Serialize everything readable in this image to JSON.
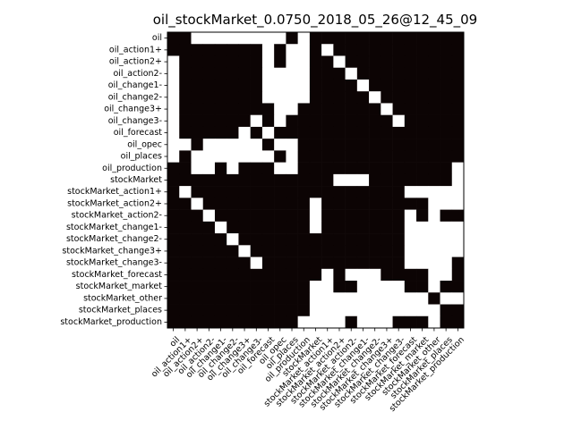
{
  "chart_data": {
    "type": "heatmap",
    "title": "oil_stockMarket_0.0750_2018_05_26@12_45_09",
    "xlabel": "",
    "ylabel": "",
    "grid": false,
    "colormap": {
      "one": "#ffffff",
      "zero": "#0c0404"
    },
    "labels": [
      "oil",
      "oil_action1+",
      "oil_action2+",
      "oil_action2-",
      "oil_change1-",
      "oil_change2-",
      "oil_change3+",
      "oil_change3-",
      "oil_forecast",
      "oil_opec",
      "oil_places",
      "oil_production",
      "stockMarket",
      "stockMarket_action1+",
      "stockMarket_action2+",
      "stockMarket_action2-",
      "stockMarket_change1-",
      "stockMarket_change2-",
      "stockMarket_change3+",
      "stockMarket_change3-",
      "stockMarket_forecast",
      "stockMarket_market",
      "stockMarket_other",
      "stockMarket_places",
      "stockMarket_production"
    ],
    "matrix": [
      [
        0,
        0,
        1,
        1,
        1,
        1,
        1,
        1,
        1,
        1,
        0,
        1,
        0,
        0,
        0,
        0,
        0,
        0,
        0,
        0,
        0,
        0,
        0,
        0,
        0
      ],
      [
        0,
        0,
        0,
        0,
        0,
        0,
        0,
        0,
        1,
        0,
        1,
        1,
        0,
        1,
        0,
        0,
        0,
        0,
        0,
        0,
        0,
        0,
        0,
        0,
        0
      ],
      [
        1,
        0,
        0,
        0,
        0,
        0,
        0,
        0,
        1,
        0,
        1,
        1,
        0,
        0,
        1,
        0,
        0,
        0,
        0,
        0,
        0,
        0,
        0,
        0,
        0
      ],
      [
        1,
        0,
        0,
        0,
        0,
        0,
        0,
        0,
        1,
        1,
        1,
        1,
        0,
        0,
        0,
        1,
        0,
        0,
        0,
        0,
        0,
        0,
        0,
        0,
        0
      ],
      [
        1,
        0,
        0,
        0,
        0,
        0,
        0,
        0,
        1,
        1,
        1,
        1,
        0,
        0,
        0,
        0,
        1,
        0,
        0,
        0,
        0,
        0,
        0,
        0,
        0
      ],
      [
        1,
        0,
        0,
        0,
        0,
        0,
        0,
        0,
        1,
        1,
        1,
        1,
        0,
        0,
        0,
        0,
        0,
        1,
        0,
        0,
        0,
        0,
        0,
        0,
        0
      ],
      [
        1,
        0,
        0,
        0,
        0,
        0,
        0,
        0,
        0,
        1,
        1,
        0,
        0,
        0,
        0,
        0,
        0,
        0,
        1,
        0,
        0,
        0,
        0,
        0,
        0
      ],
      [
        1,
        0,
        0,
        0,
        0,
        0,
        0,
        1,
        0,
        1,
        0,
        0,
        0,
        0,
        0,
        0,
        0,
        0,
        0,
        1,
        0,
        0,
        0,
        0,
        0
      ],
      [
        1,
        0,
        0,
        0,
        0,
        0,
        1,
        0,
        1,
        0,
        0,
        0,
        0,
        0,
        0,
        0,
        0,
        0,
        0,
        0,
        0,
        0,
        0,
        0,
        0
      ],
      [
        1,
        1,
        0,
        1,
        1,
        1,
        1,
        1,
        0,
        1,
        1,
        0,
        0,
        0,
        0,
        0,
        0,
        0,
        0,
        0,
        0,
        0,
        0,
        0,
        0
      ],
      [
        1,
        0,
        1,
        1,
        1,
        1,
        1,
        1,
        1,
        0,
        1,
        0,
        0,
        0,
        0,
        0,
        0,
        0,
        0,
        0,
        0,
        0,
        0,
        0,
        0
      ],
      [
        0,
        0,
        1,
        1,
        0,
        1,
        0,
        0,
        0,
        1,
        1,
        0,
        0,
        0,
        0,
        0,
        0,
        0,
        0,
        0,
        0,
        0,
        0,
        0,
        1
      ],
      [
        0,
        0,
        0,
        0,
        0,
        0,
        0,
        0,
        0,
        0,
        0,
        0,
        0,
        0,
        1,
        1,
        1,
        0,
        0,
        0,
        0,
        0,
        0,
        0,
        1
      ],
      [
        0,
        1,
        0,
        0,
        0,
        0,
        0,
        0,
        0,
        0,
        0,
        0,
        0,
        0,
        0,
        0,
        0,
        0,
        0,
        0,
        1,
        1,
        1,
        1,
        1
      ],
      [
        0,
        0,
        1,
        0,
        0,
        0,
        0,
        0,
        0,
        0,
        0,
        0,
        1,
        0,
        0,
        0,
        0,
        0,
        0,
        0,
        0,
        0,
        1,
        1,
        1
      ],
      [
        0,
        0,
        0,
        1,
        0,
        0,
        0,
        0,
        0,
        0,
        0,
        0,
        1,
        0,
        0,
        0,
        0,
        0,
        0,
        0,
        1,
        0,
        1,
        0,
        0
      ],
      [
        0,
        0,
        0,
        0,
        1,
        0,
        0,
        0,
        0,
        0,
        0,
        0,
        1,
        0,
        0,
        0,
        0,
        0,
        0,
        0,
        1,
        1,
        1,
        1,
        1
      ],
      [
        0,
        0,
        0,
        0,
        0,
        1,
        0,
        0,
        0,
        0,
        0,
        0,
        0,
        0,
        0,
        0,
        0,
        0,
        0,
        0,
        1,
        1,
        1,
        1,
        1
      ],
      [
        0,
        0,
        0,
        0,
        0,
        0,
        1,
        0,
        0,
        0,
        0,
        0,
        0,
        0,
        0,
        0,
        0,
        0,
        0,
        0,
        1,
        1,
        1,
        1,
        1
      ],
      [
        0,
        0,
        0,
        0,
        0,
        0,
        0,
        1,
        0,
        0,
        0,
        0,
        0,
        0,
        0,
        0,
        0,
        0,
        0,
        0,
        1,
        1,
        1,
        1,
        0
      ],
      [
        0,
        0,
        0,
        0,
        0,
        0,
        0,
        0,
        0,
        0,
        0,
        0,
        0,
        1,
        0,
        1,
        1,
        1,
        0,
        0,
        0,
        0,
        1,
        1,
        0
      ],
      [
        0,
        0,
        0,
        0,
        0,
        0,
        0,
        0,
        0,
        0,
        0,
        0,
        1,
        1,
        0,
        0,
        1,
        1,
        1,
        1,
        0,
        0,
        1,
        0,
        0
      ],
      [
        0,
        0,
        0,
        0,
        0,
        0,
        0,
        0,
        0,
        0,
        0,
        0,
        1,
        1,
        1,
        1,
        1,
        1,
        1,
        1,
        1,
        1,
        0,
        1,
        1
      ],
      [
        0,
        0,
        0,
        0,
        0,
        0,
        0,
        0,
        0,
        0,
        0,
        0,
        1,
        1,
        1,
        1,
        1,
        1,
        1,
        1,
        1,
        1,
        1,
        0,
        0
      ],
      [
        0,
        0,
        0,
        0,
        0,
        0,
        0,
        0,
        0,
        0,
        0,
        1,
        1,
        1,
        1,
        0,
        1,
        1,
        1,
        0,
        0,
        0,
        1,
        0,
        0
      ]
    ]
  }
}
